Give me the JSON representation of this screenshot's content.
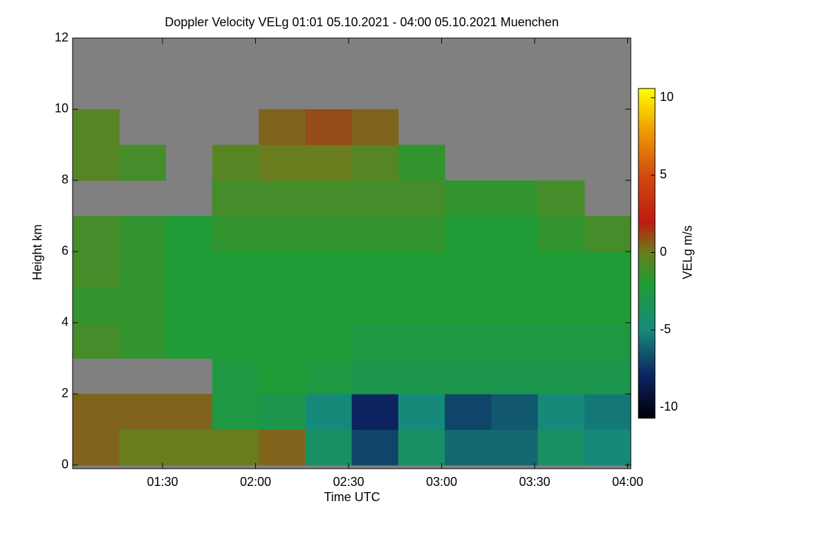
{
  "chart_data": {
    "type": "heatmap",
    "title": "Doppler Velocity VELg   01:01 05.10.2021 - 04:00 05.10.2021 Muenchen",
    "x_label": "Time UTC",
    "y_label": "Height km",
    "colorbar_label": "VELg m/s",
    "xlim": [
      61,
      241
    ],
    "ylim": [
      -0.1,
      12
    ],
    "xticks": [
      {
        "value": 90,
        "label": "01:30"
      },
      {
        "value": 120,
        "label": "02:00"
      },
      {
        "value": 150,
        "label": "02:30"
      },
      {
        "value": 180,
        "label": "03:00"
      },
      {
        "value": 210,
        "label": "03:30"
      },
      {
        "value": 240,
        "label": "04:00"
      }
    ],
    "yticks": [
      0,
      2,
      4,
      6,
      8,
      10,
      12
    ],
    "zlim": [
      -10.7,
      10.6
    ],
    "zticks": [
      -10,
      -5,
      0,
      5,
      10
    ],
    "colorscale": [
      [
        -10.7,
        "#000005"
      ],
      [
        -8,
        "#0c2360"
      ],
      [
        -5,
        "#168a7a"
      ],
      [
        -2,
        "#1f9c35"
      ],
      [
        0,
        "#6a7d1e"
      ],
      [
        2,
        "#c01a10"
      ],
      [
        5,
        "#d24a10"
      ],
      [
        8,
        "#f0a000"
      ],
      [
        10.6,
        "#ffff00"
      ]
    ],
    "missing_color": "#808080",
    "xbins": [
      61,
      76,
      91,
      106,
      121,
      136,
      151,
      166,
      181,
      196,
      211,
      226,
      241
    ],
    "ybins": [
      0,
      1,
      2,
      3,
      4,
      5,
      6,
      7,
      8,
      9,
      10,
      11,
      12
    ],
    "z": [
      [
        0.5,
        0,
        0,
        0,
        0.5,
        -4,
        -7,
        -4,
        -6,
        -6,
        -4,
        -5
      ],
      [
        0.5,
        0.5,
        0.5,
        -2.5,
        -3,
        -5,
        -8,
        -5,
        -7,
        -6.5,
        -5,
        -5.5
      ],
      [
        null,
        null,
        null,
        -2.5,
        -2,
        -2.5,
        -3,
        -3,
        -3,
        -3,
        -3,
        -3
      ],
      [
        -1,
        -1.5,
        -2,
        -2,
        -2,
        -2,
        -2.5,
        -2.5,
        -2.5,
        -2.5,
        -2.5,
        -2.5
      ],
      [
        -1.5,
        -1.5,
        -2,
        -2,
        -2,
        -2,
        -2,
        -2,
        -2,
        -2,
        -2,
        -2
      ],
      [
        -1,
        -1.5,
        -2,
        -2,
        -2,
        -2,
        -2,
        -2,
        -2,
        -2,
        -2,
        -2
      ],
      [
        -1,
        -1.5,
        -2,
        -1.5,
        -1.5,
        -1.5,
        -1.5,
        -1.5,
        -2,
        -2,
        -1.5,
        -1
      ],
      [
        null,
        null,
        null,
        -1,
        -1,
        -1,
        -1,
        -1,
        -1.5,
        -1.5,
        -1,
        null
      ],
      [
        -0.5,
        -1,
        null,
        -0.5,
        0,
        0,
        -0.5,
        -1.5,
        null,
        null,
        null,
        null
      ],
      [
        -0.5,
        null,
        null,
        null,
        0.5,
        1,
        0.5,
        null,
        null,
        null,
        null,
        null
      ],
      [
        null,
        null,
        null,
        null,
        null,
        null,
        null,
        null,
        null,
        null,
        null,
        null
      ],
      [
        null,
        null,
        null,
        null,
        null,
        null,
        null,
        null,
        null,
        null,
        null,
        null
      ]
    ]
  }
}
